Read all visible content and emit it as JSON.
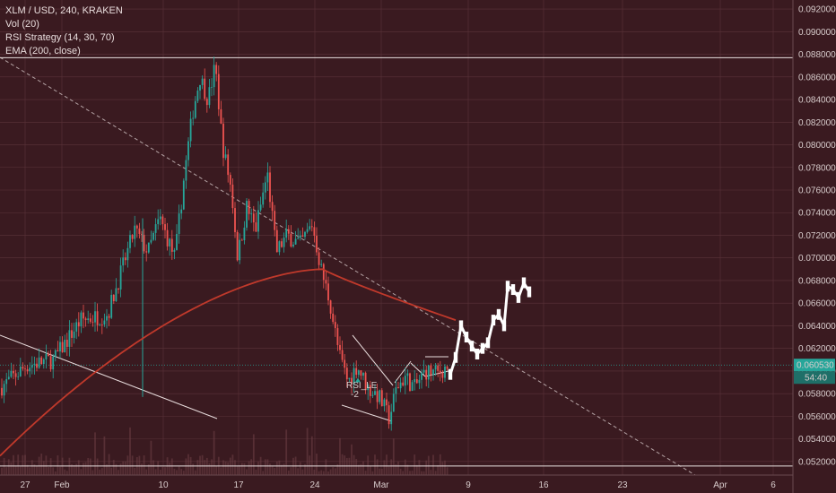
{
  "legend": {
    "symbol": "XLM / USD, 240, KRAKEN",
    "vol": "Vol (20)",
    "rsi": "RSI Strategy (14, 30, 70)",
    "ema": "EMA (200, close)"
  },
  "colors": {
    "background": "#3a1a20",
    "bull": "#26a69a",
    "bear": "#ef5350",
    "ema": "#c0392b",
    "drawing": "#ffffff",
    "price_tag": "#26a69a",
    "grid": "#5a333a"
  },
  "price_tag": {
    "price": "0.060530",
    "countdown": "54:40"
  },
  "signal_labels": [
    "RSI_LE",
    "-2"
  ],
  "chart_data": {
    "type": "candlestick",
    "title": "XLM / USD, 240, KRAKEN",
    "y_axis": {
      "position": "right",
      "ylim": [
        0.0508,
        0.0928
      ],
      "ticks": [
        "0.052000",
        "0.054000",
        "0.056000",
        "0.058000",
        "0.060000",
        "0.062000",
        "0.064000",
        "0.066000",
        "0.068000",
        "0.070000",
        "0.072000",
        "0.074000",
        "0.076000",
        "0.078000",
        "0.080000",
        "0.082000",
        "0.084000",
        "0.086000",
        "0.088000",
        "0.090000",
        "0.092000"
      ]
    },
    "x_axis": {
      "labels": [
        "27",
        "Feb",
        "10",
        "17",
        "24",
        "Mar",
        "9",
        "16",
        "23",
        "Apr",
        "6"
      ]
    },
    "price_series_approx": [
      {
        "date": "Jan 27",
        "close": 0.059
      },
      {
        "date": "Feb 3",
        "close": 0.065
      },
      {
        "date": "Feb 6",
        "close": 0.073
      },
      {
        "date": "Feb 9",
        "close": 0.071
      },
      {
        "date": "Feb 11",
        "close": 0.075
      },
      {
        "date": "Feb 13",
        "close": 0.086
      },
      {
        "date": "Feb 14",
        "close": 0.087
      },
      {
        "date": "Feb 16",
        "close": 0.08
      },
      {
        "date": "Feb 17",
        "close": 0.07
      },
      {
        "date": "Feb 18",
        "close": 0.0745
      },
      {
        "date": "Feb 20",
        "close": 0.0775
      },
      {
        "date": "Feb 21",
        "close": 0.0705
      },
      {
        "date": "Feb 23",
        "close": 0.072
      },
      {
        "date": "Feb 25",
        "close": 0.069
      },
      {
        "date": "Feb 27",
        "close": 0.062
      },
      {
        "date": "Feb 28",
        "close": 0.06
      },
      {
        "date": "Mar 1",
        "close": 0.0555
      },
      {
        "date": "Mar 3",
        "close": 0.059
      },
      {
        "date": "Mar 5",
        "close": 0.06
      },
      {
        "date": "Mar 7",
        "close": 0.0605
      }
    ],
    "ema200": {
      "name": "EMA (200, close)",
      "from": 0.0525,
      "peak": 0.069,
      "to": 0.0645
    },
    "horizontal_lines": [
      0.0877,
      0.0516
    ],
    "current_price": 0.06053,
    "grid": true
  }
}
